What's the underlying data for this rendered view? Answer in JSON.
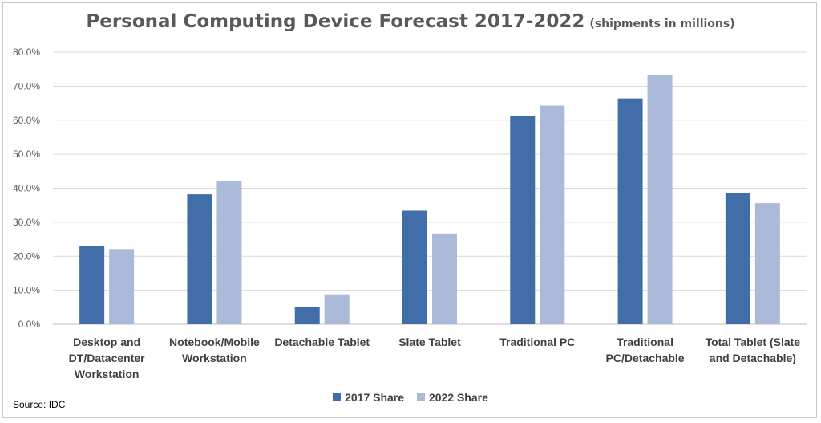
{
  "chart_data": {
    "type": "bar",
    "title": "Personal Computing Device Forecast 2017-2022",
    "subtitle": "(shipments in millions)",
    "source": "Source: IDC",
    "categories": [
      [
        "Desktop and",
        "DT/Datacenter",
        "Workstation"
      ],
      [
        "Notebook/Mobile",
        "Workstation"
      ],
      [
        "Detachable Tablet"
      ],
      [
        "Slate Tablet"
      ],
      [
        "Traditional PC"
      ],
      [
        "Traditional",
        "PC/Detachable"
      ],
      [
        "Total Tablet (Slate",
        "and Detachable)"
      ]
    ],
    "series": [
      {
        "name": "2017 Share",
        "color": "#416da8",
        "values": [
          23.0,
          38.2,
          5.0,
          33.4,
          61.3,
          66.4,
          38.7
        ]
      },
      {
        "name": "2022 Share",
        "color": "#abbad8",
        "values": [
          22.1,
          42.0,
          8.8,
          26.7,
          64.3,
          73.2,
          35.6
        ]
      }
    ],
    "y_ticks": [
      "0.0%",
      "10.0%",
      "20.0%",
      "30.0%",
      "40.0%",
      "50.0%",
      "60.0%",
      "70.0%",
      "80.0%"
    ],
    "ylim": [
      0,
      80
    ],
    "grid": true,
    "legend_position": "bottom"
  }
}
